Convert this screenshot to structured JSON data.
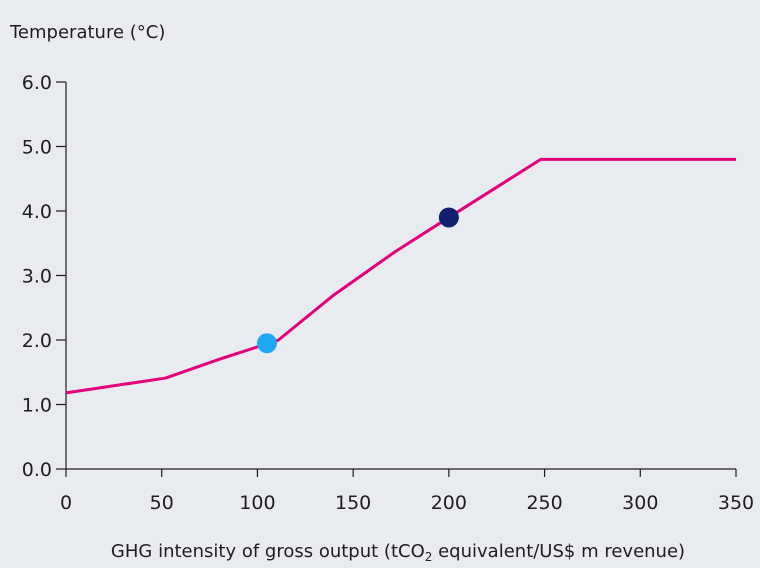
{
  "chart_data": {
    "type": "line",
    "ylabel": "Temperature (°C)",
    "xlabel": {
      "before": "GHG intensity of gross output (tCO",
      "subscript": "2",
      "after": " equivalent/US$ m revenue)"
    },
    "xlim": [
      0,
      350
    ],
    "ylim": [
      0,
      6.0
    ],
    "x_ticks": [
      "0",
      "50",
      "100",
      "150",
      "200",
      "250",
      "300",
      "350"
    ],
    "y_ticks": [
      "0.0",
      "1.0",
      "2.0",
      "3.0",
      "4.0",
      "5.0",
      "6.0"
    ],
    "series": [
      {
        "color": "#e0007a",
        "points": [
          [
            0,
            1.18
          ],
          [
            52,
            1.41
          ],
          [
            80,
            1.7
          ],
          [
            111,
            2.0
          ],
          [
            140,
            2.7
          ],
          [
            172,
            3.37
          ],
          [
            200,
            3.9
          ],
          [
            248,
            4.8
          ],
          [
            350,
            4.8
          ]
        ]
      }
    ],
    "markers": [
      {
        "x": 105,
        "y": 1.95,
        "color": "#1ea7f2"
      },
      {
        "x": 200,
        "y": 3.9,
        "color": "#10206e"
      }
    ]
  }
}
